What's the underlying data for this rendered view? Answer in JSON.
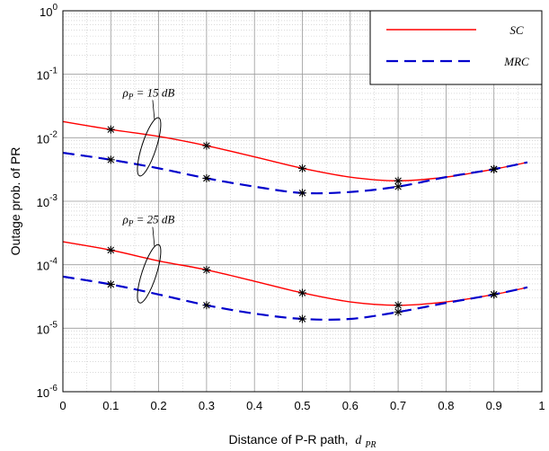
{
  "chart_data": {
    "type": "line",
    "xlabel": "Distance of P-R path,",
    "xlabel_math": {
      "base": "d",
      "sub": "PR"
    },
    "ylabel": "Outage prob. of PR",
    "xlim": [
      0,
      1
    ],
    "ylim": [
      1e-06,
      1
    ],
    "yscale": "log",
    "grid": true,
    "legend_position": "top-right",
    "x_ticks": [
      "0",
      "0.1",
      "0.2",
      "0.3",
      "0.4",
      "0.5",
      "0.6",
      "0.7",
      "0.8",
      "0.9",
      "1"
    ],
    "y_ticks": [
      {
        "base": "10",
        "exp": "-6",
        "value": 1e-06
      },
      {
        "base": "10",
        "exp": "-5",
        "value": 1e-05
      },
      {
        "base": "10",
        "exp": "-4",
        "value": 0.0001
      },
      {
        "base": "10",
        "exp": "-3",
        "value": 0.001
      },
      {
        "base": "10",
        "exp": "-2",
        "value": 0.01
      },
      {
        "base": "10",
        "exp": "-1",
        "value": 0.1
      },
      {
        "base": "10",
        "exp": "0",
        "value": 1
      }
    ],
    "legend": [
      {
        "label": "SC",
        "color": "#ff0000",
        "dash": "solid"
      },
      {
        "label": "MRC",
        "color": "#0000cc",
        "dash": "dashed"
      }
    ],
    "annotations": [
      {
        "prefix": "ρ",
        "sub": "P",
        "text": " = 15 dB",
        "ellipse_x": 0.18,
        "ellipse_y": 0.0072
      },
      {
        "prefix": "ρ",
        "sub": "P",
        "text": " = 25 dB",
        "ellipse_x": 0.18,
        "ellipse_y": 7.2e-05
      }
    ],
    "series": [
      {
        "label_ref": "SC",
        "group": "15 dB",
        "color": "#ff0000",
        "dash": "solid",
        "x": [
          0.0,
          0.1,
          0.2,
          0.3,
          0.4,
          0.5,
          0.6,
          0.7,
          0.8,
          0.9,
          0.97
        ],
        "y": [
          0.018,
          0.0135,
          0.0105,
          0.0075,
          0.005,
          0.0033,
          0.0024,
          0.0021,
          0.0024,
          0.0032,
          0.0041
        ],
        "markers_x": [
          0.1,
          0.3,
          0.5,
          0.7,
          0.9
        ]
      },
      {
        "label_ref": "MRC",
        "group": "15 dB",
        "color": "#0000cc",
        "dash": "dashed",
        "x": [
          0.0,
          0.1,
          0.2,
          0.3,
          0.4,
          0.5,
          0.6,
          0.7,
          0.8,
          0.9,
          0.97
        ],
        "y": [
          0.0058,
          0.0045,
          0.0033,
          0.0023,
          0.0017,
          0.00135,
          0.0014,
          0.0017,
          0.0024,
          0.0032,
          0.0041
        ],
        "markers_x": [
          0.1,
          0.3,
          0.5,
          0.7,
          0.9
        ]
      },
      {
        "label_ref": "SC",
        "group": "25 dB",
        "color": "#ff0000",
        "dash": "solid",
        "x": [
          0.0,
          0.1,
          0.2,
          0.3,
          0.4,
          0.5,
          0.6,
          0.7,
          0.8,
          0.9,
          0.97
        ],
        "y": [
          0.00023,
          0.00017,
          0.000115,
          8.3e-05,
          5.5e-05,
          3.6e-05,
          2.6e-05,
          2.3e-05,
          2.6e-05,
          3.4e-05,
          4.4e-05
        ],
        "markers_x": [
          0.1,
          0.3,
          0.5,
          0.7,
          0.9
        ]
      },
      {
        "label_ref": "MRC",
        "group": "25 dB",
        "color": "#0000cc",
        "dash": "dashed",
        "x": [
          0.0,
          0.1,
          0.2,
          0.3,
          0.4,
          0.5,
          0.6,
          0.7,
          0.8,
          0.9,
          0.97
        ],
        "y": [
          6.5e-05,
          4.9e-05,
          3.4e-05,
          2.3e-05,
          1.7e-05,
          1.4e-05,
          1.4e-05,
          1.8e-05,
          2.5e-05,
          3.4e-05,
          4.4e-05
        ],
        "markers_x": [
          0.1,
          0.3,
          0.5,
          0.7,
          0.9
        ]
      }
    ]
  }
}
